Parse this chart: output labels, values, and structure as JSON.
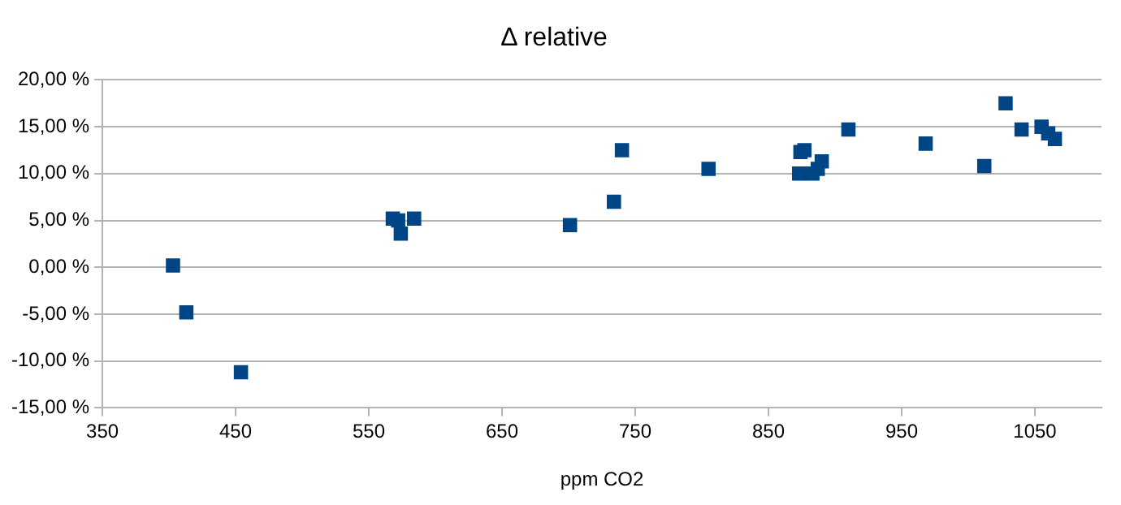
{
  "chart_data": {
    "type": "scatter",
    "title": "Δ relative",
    "xlabel": "ppm CO2",
    "xlim": [
      350,
      1100
    ],
    "xticks": [
      350,
      450,
      550,
      650,
      750,
      850,
      950,
      1050
    ],
    "ylim": [
      -15,
      20
    ],
    "yticks": [
      {
        "value": -15,
        "label": "-15,00 %"
      },
      {
        "value": -10,
        "label": "-10,00 %"
      },
      {
        "value": -5,
        "label": "-5,00 %"
      },
      {
        "value": 0,
        "label": "0,00 %"
      },
      {
        "value": 5,
        "label": "5,00 %"
      },
      {
        "value": 10,
        "label": "10,00 %"
      },
      {
        "value": 15,
        "label": "15,00 %"
      },
      {
        "value": 20,
        "label": "20,00 %"
      }
    ],
    "grid": "y",
    "marker": "square",
    "legend": false,
    "series": [
      {
        "color": "#004586",
        "x": [
          403,
          413,
          454,
          568,
          572,
          574,
          584,
          701,
          734,
          740,
          805,
          873,
          874,
          877,
          883,
          887,
          890,
          910,
          968,
          1012,
          1028,
          1040,
          1055,
          1060,
          1065
        ],
        "values": [
          0.2,
          -4.8,
          -11.2,
          5.2,
          5.0,
          3.6,
          5.2,
          4.5,
          7.0,
          12.5,
          10.5,
          10.0,
          12.3,
          12.5,
          10.0,
          10.5,
          11.3,
          14.7,
          13.2,
          10.8,
          17.5,
          14.7,
          15.0,
          14.3,
          13.7
        ]
      }
    ]
  }
}
